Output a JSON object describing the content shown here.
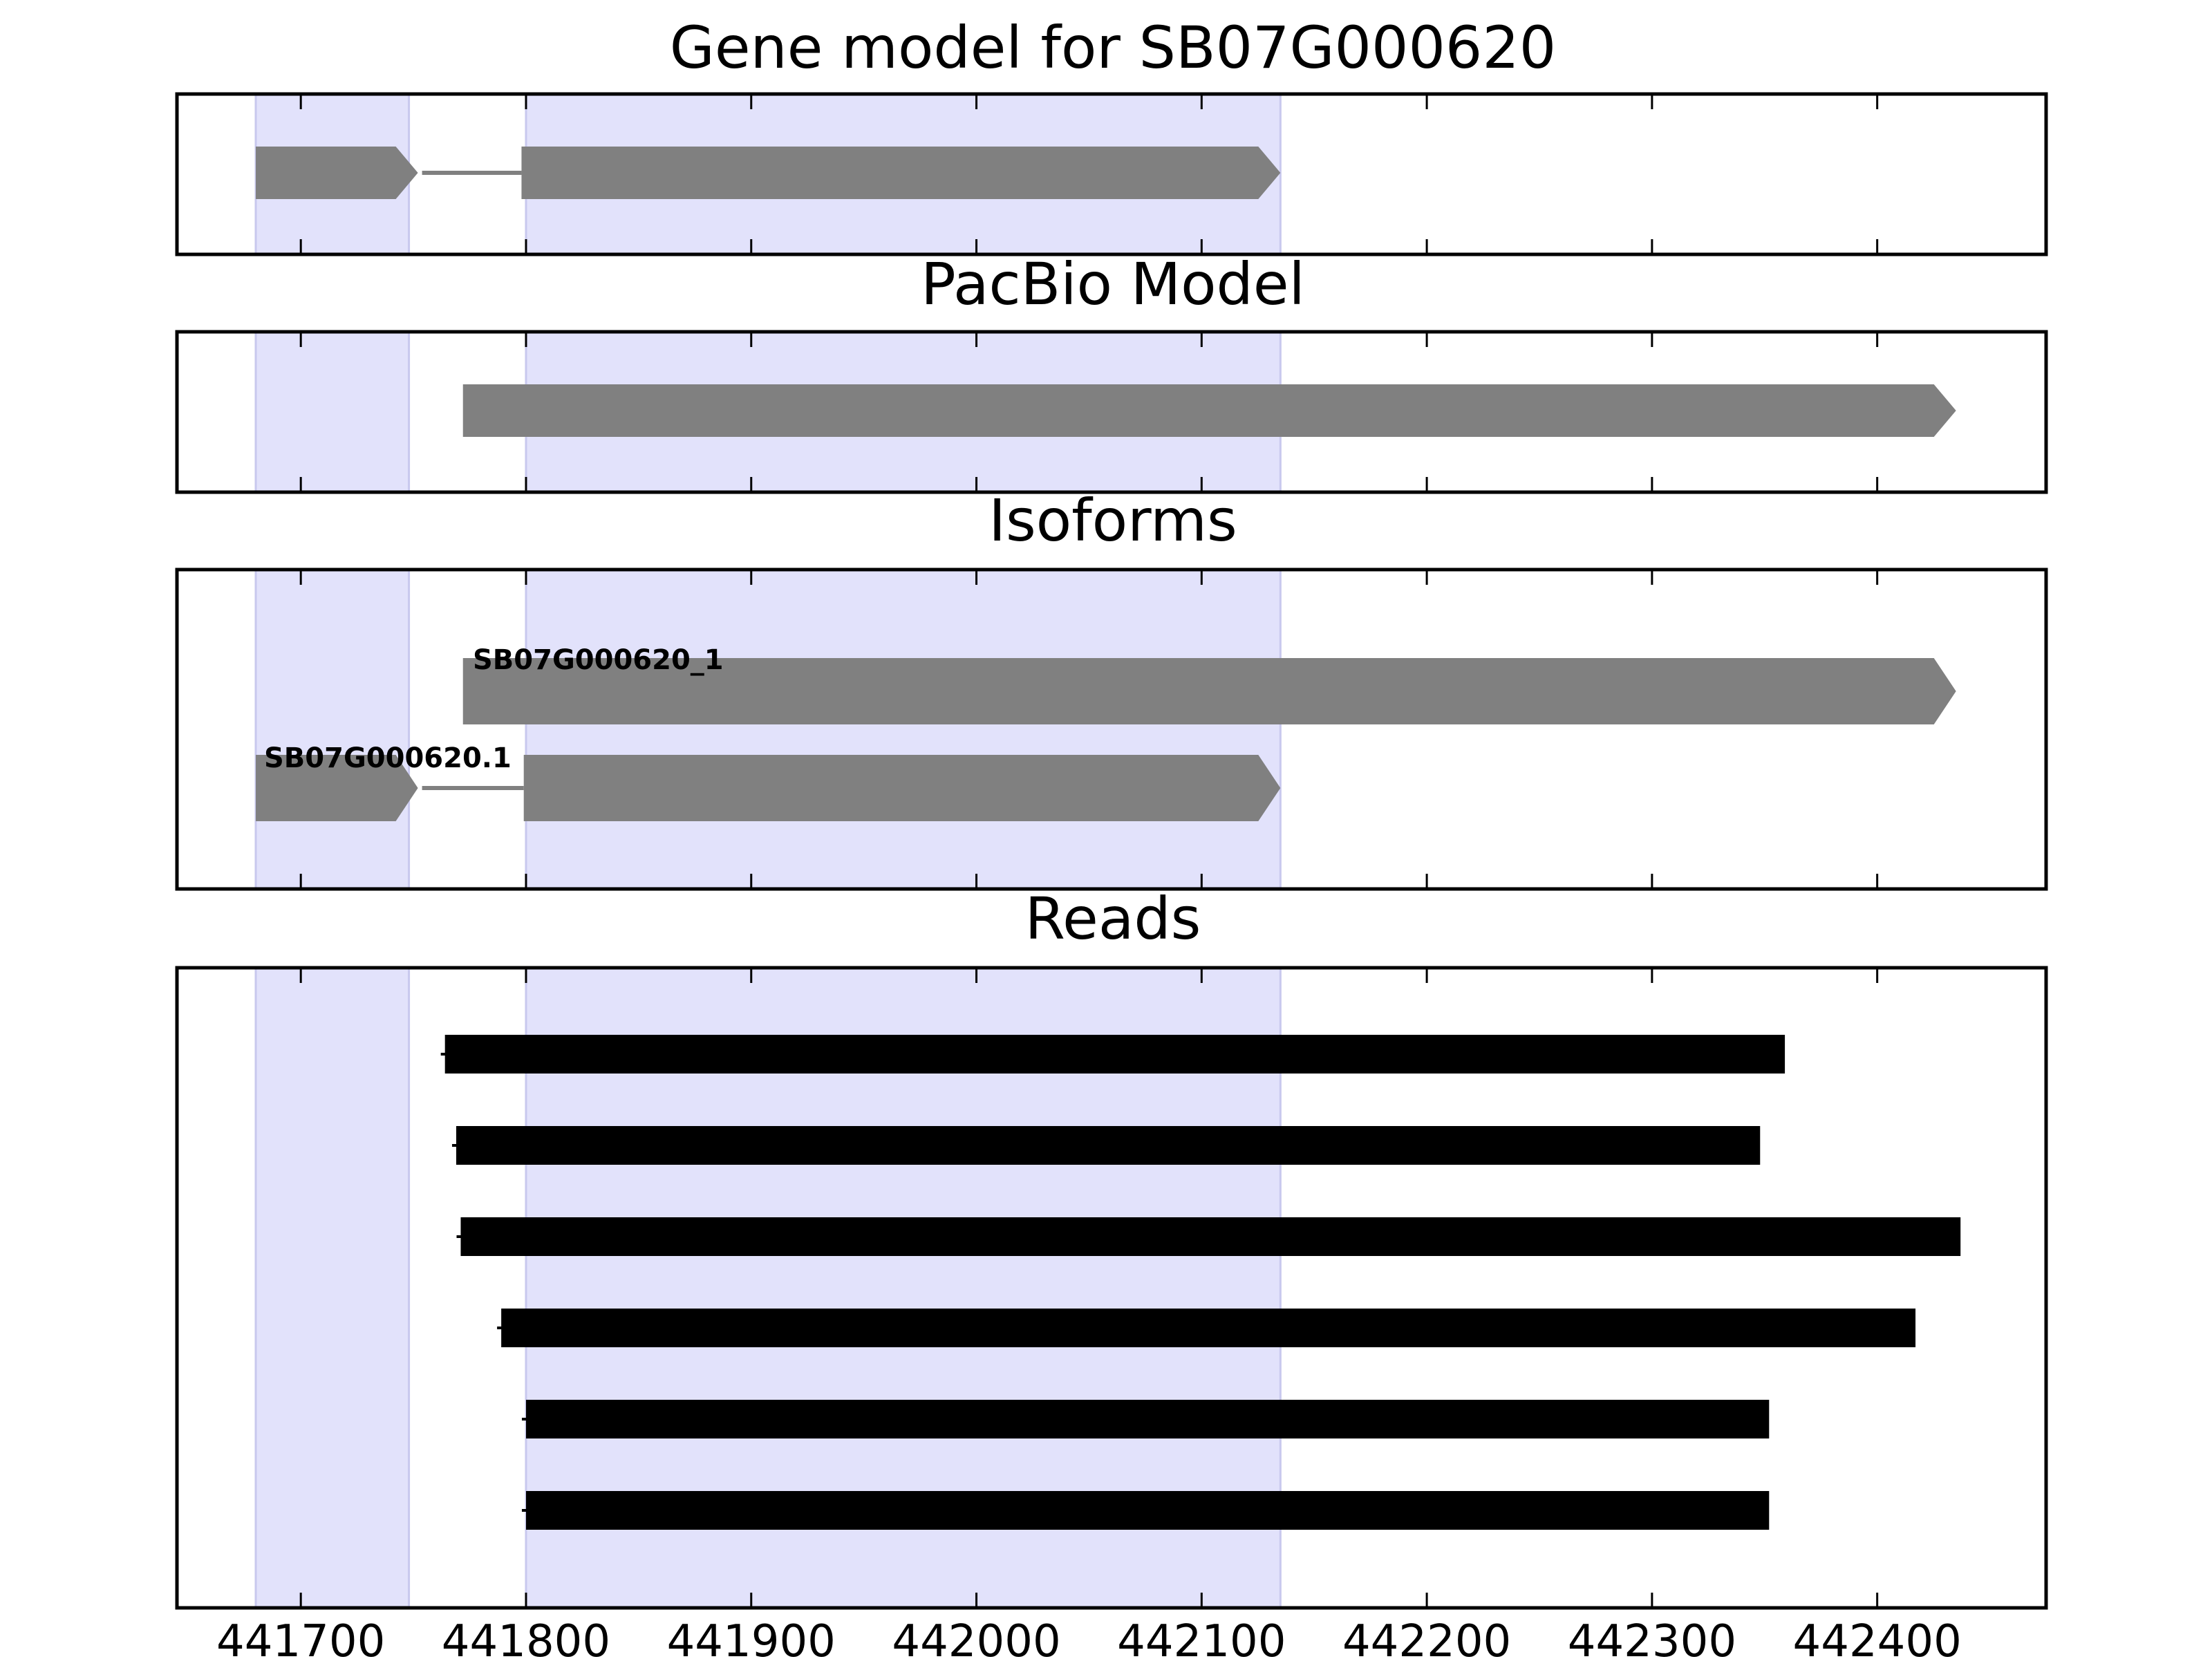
{
  "chart_data": {
    "type": "gene_track",
    "xlim": [
      441645,
      442475
    ],
    "ticks": [
      441700,
      441800,
      441900,
      442000,
      442100,
      442200,
      442300,
      442400
    ],
    "tick_labels": [
      "441700",
      "441800",
      "441900",
      "442000",
      "442100",
      "442200",
      "442300",
      "442400"
    ],
    "highlight_regions": [
      [
        441680,
        441748
      ],
      [
        441800,
        442135
      ]
    ],
    "colors": {
      "feature": "#808080",
      "read": "#000000",
      "highlight": "#e2e2fb",
      "highlight_edge": "#c8c8ee",
      "frame": "#000000"
    },
    "panels": [
      {
        "title": "Gene model for SB07G000620",
        "models": [
          {
            "label": "",
            "strand": "+",
            "exons": [
              [
                441680,
                441752
              ],
              [
                441798,
                442135
              ]
            ]
          }
        ]
      },
      {
        "title": "PacBio Model",
        "models": [
          {
            "label": "",
            "strand": "+",
            "exons": [
              [
                441772,
                442435
              ]
            ]
          }
        ]
      },
      {
        "title": "Isoforms",
        "models": [
          {
            "label": "SB07G000620_1",
            "strand": "+",
            "exons": [
              [
                441772,
                442435
              ]
            ]
          },
          {
            "label": "SB07G000620.1",
            "strand": "+",
            "exons": [
              [
                441680,
                441752
              ],
              [
                441799,
                442135
              ]
            ]
          }
        ]
      },
      {
        "title": "Reads",
        "reads": [
          [
            441764,
            442359
          ],
          [
            441769,
            442348
          ],
          [
            441771,
            442437
          ],
          [
            441789,
            442417
          ],
          [
            441800,
            442352
          ],
          [
            441800,
            442352
          ]
        ]
      }
    ]
  }
}
